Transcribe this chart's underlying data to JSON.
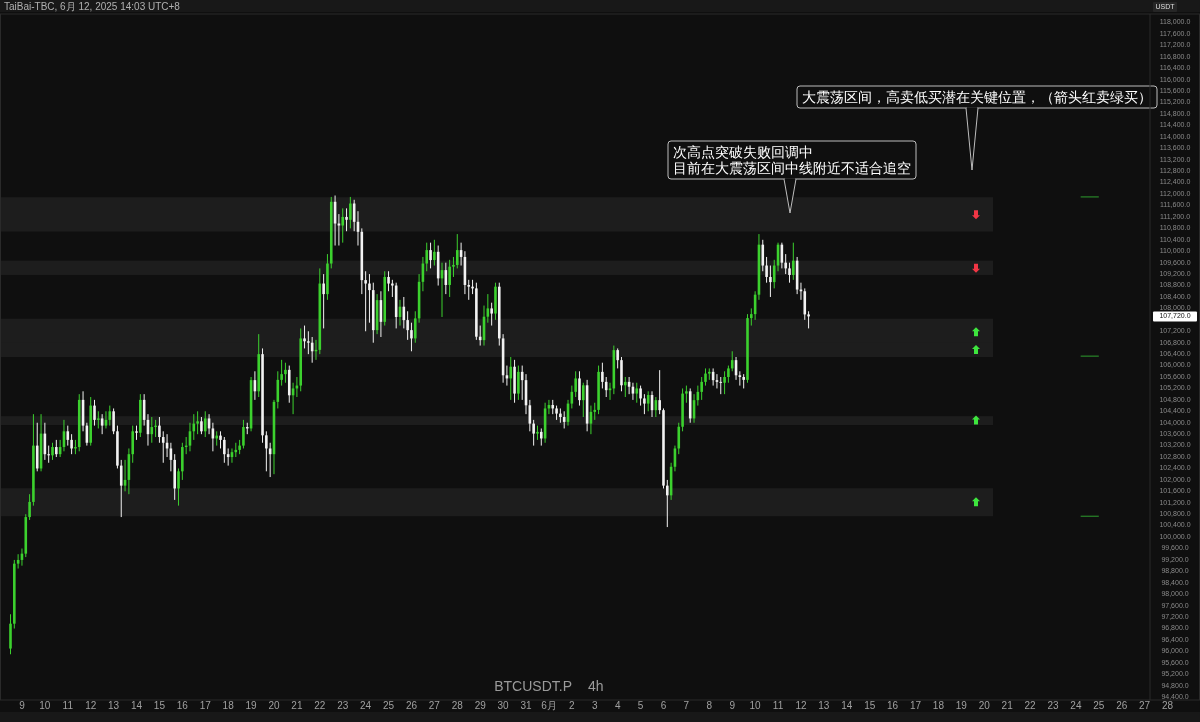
{
  "chart_data": {
    "type": "candlestick",
    "title": "BTCUSDT.P",
    "subtitle": "4h",
    "ylabel": "USDT",
    "annotations": [
      "TaiBai-TBC, 6月 12, 2025 14:03 UTC+8",
      "次高点突破失败回调中",
      "目前在大震荡区间中线附近不适合追空",
      "大震荡区间，高卖低买潜在关键位置，（箭头红卖绿买）",
      "107,720.0"
    ],
    "series": [
      {
        "type": "line",
        "color": "#2e9e2e",
        "x": [
          "2025-06-24T05:00",
          "2025-06-25T00:00"
        ],
        "values": [
          111900,
          111900
        ]
      },
      {
        "type": "line",
        "color": "#2e9e2e",
        "x": [
          "2025-06-24T05:00",
          "2025-06-25T00:00"
        ],
        "values": [
          106330,
          106330
        ]
      },
      {
        "type": "line",
        "color": "#2e9e2e",
        "x": [
          "2025-06-24T05:00",
          "2025-06-25T00:00"
        ],
        "values": [
          100730,
          100730
        ]
      }
    ],
    "xlim": [
      "2025-05-08T01:00",
      "2025-06-29T10:00"
    ],
    "ylim": [
      94300,
      118300
    ],
    "x": [
      "2025-05-08T12:00",
      "2025-05-08T16:00",
      "2025-05-08T20:00",
      "2025-05-09T00:00",
      "2025-05-09T04:00",
      "2025-05-09T08:00",
      "2025-05-09T12:00",
      "2025-05-09T16:00",
      "2025-05-09T20:00",
      "2025-05-10T00:00",
      "2025-05-10T04:00",
      "2025-05-10T08:00",
      "2025-05-10T12:00",
      "2025-05-10T16:00",
      "2025-05-10T20:00",
      "2025-05-11T00:00",
      "2025-05-11T04:00",
      "2025-05-11T08:00",
      "2025-05-11T12:00",
      "2025-05-11T16:00",
      "2025-05-11T20:00",
      "2025-05-12T00:00",
      "2025-05-12T04:00",
      "2025-05-12T08:00",
      "2025-05-12T12:00",
      "2025-05-12T16:00",
      "2025-05-12T20:00",
      "2025-05-13T00:00",
      "2025-05-13T04:00",
      "2025-05-13T08:00",
      "2025-05-13T12:00",
      "2025-05-13T16:00",
      "2025-05-13T20:00",
      "2025-05-14T00:00",
      "2025-05-14T04:00",
      "2025-05-14T08:00",
      "2025-05-14T12:00",
      "2025-05-14T16:00",
      "2025-05-14T20:00",
      "2025-05-15T00:00",
      "2025-05-15T04:00",
      "2025-05-15T08:00",
      "2025-05-15T12:00",
      "2025-05-15T16:00",
      "2025-05-15T20:00",
      "2025-05-16T00:00",
      "2025-05-16T04:00",
      "2025-05-16T08:00",
      "2025-05-16T12:00",
      "2025-05-16T16:00",
      "2025-05-16T20:00",
      "2025-05-17T00:00",
      "2025-05-17T04:00",
      "2025-05-17T08:00",
      "2025-05-17T12:00",
      "2025-05-17T16:00",
      "2025-05-17T20:00",
      "2025-05-18T00:00",
      "2025-05-18T04:00",
      "2025-05-18T08:00",
      "2025-05-18T12:00",
      "2025-05-18T16:00",
      "2025-05-18T20:00",
      "2025-05-19T00:00",
      "2025-05-19T04:00",
      "2025-05-19T08:00",
      "2025-05-19T12:00",
      "2025-05-19T16:00",
      "2025-05-19T20:00",
      "2025-05-20T00:00",
      "2025-05-20T04:00",
      "2025-05-20T08:00",
      "2025-05-20T12:00",
      "2025-05-20T16:00",
      "2025-05-20T20:00",
      "2025-05-21T00:00",
      "2025-05-21T04:00",
      "2025-05-21T08:00",
      "2025-05-21T12:00",
      "2025-05-21T16:00",
      "2025-05-21T20:00",
      "2025-05-22T00:00",
      "2025-05-22T04:00",
      "2025-05-22T08:00",
      "2025-05-22T12:00",
      "2025-05-22T16:00",
      "2025-05-22T20:00",
      "2025-05-23T00:00",
      "2025-05-23T04:00",
      "2025-05-23T08:00",
      "2025-05-23T12:00",
      "2025-05-23T16:00",
      "2025-05-23T20:00",
      "2025-05-24T00:00",
      "2025-05-24T04:00",
      "2025-05-24T08:00",
      "2025-05-24T12:00",
      "2025-05-24T16:00",
      "2025-05-24T20:00",
      "2025-05-25T00:00",
      "2025-05-25T04:00",
      "2025-05-25T08:00",
      "2025-05-25T12:00",
      "2025-05-25T16:00",
      "2025-05-25T20:00",
      "2025-05-26T00:00",
      "2025-05-26T04:00",
      "2025-05-26T08:00",
      "2025-05-26T12:00",
      "2025-05-26T16:00",
      "2025-05-26T20:00",
      "2025-05-27T00:00",
      "2025-05-27T04:00",
      "2025-05-27T08:00",
      "2025-05-27T12:00",
      "2025-05-27T16:00",
      "2025-05-27T20:00",
      "2025-05-28T00:00",
      "2025-05-28T04:00",
      "2025-05-28T08:00",
      "2025-05-28T12:00",
      "2025-05-28T16:00",
      "2025-05-28T20:00",
      "2025-05-29T00:00",
      "2025-05-29T04:00",
      "2025-05-29T08:00",
      "2025-05-29T12:00",
      "2025-05-29T16:00",
      "2025-05-29T20:00",
      "2025-05-30T00:00",
      "2025-05-30T04:00",
      "2025-05-30T08:00",
      "2025-05-30T12:00",
      "2025-05-30T16:00",
      "2025-05-30T20:00",
      "2025-05-31T00:00",
      "2025-05-31T04:00",
      "2025-05-31T08:00",
      "2025-05-31T12:00",
      "2025-05-31T16:00",
      "2025-05-31T20:00",
      "2025-06-01T00:00",
      "2025-06-01T04:00",
      "2025-06-01T08:00",
      "2025-06-01T12:00",
      "2025-06-01T16:00",
      "2025-06-01T20:00",
      "2025-06-02T00:00",
      "2025-06-02T04:00",
      "2025-06-02T08:00",
      "2025-06-02T12:00",
      "2025-06-02T16:00",
      "2025-06-02T20:00",
      "2025-06-03T00:00",
      "2025-06-03T04:00",
      "2025-06-03T08:00",
      "2025-06-03T12:00",
      "2025-06-03T16:00",
      "2025-06-03T20:00",
      "2025-06-04T00:00",
      "2025-06-04T04:00",
      "2025-06-04T08:00",
      "2025-06-04T12:00",
      "2025-06-04T16:00",
      "2025-06-04T20:00",
      "2025-06-05T00:00",
      "2025-06-05T04:00",
      "2025-06-05T08:00",
      "2025-06-05T12:00",
      "2025-06-05T16:00",
      "2025-06-05T20:00",
      "2025-06-06T00:00",
      "2025-06-06T04:00",
      "2025-06-06T08:00",
      "2025-06-06T12:00",
      "2025-06-06T16:00",
      "2025-06-06T20:00",
      "2025-06-07T00:00",
      "2025-06-07T04:00",
      "2025-06-07T08:00",
      "2025-06-07T12:00",
      "2025-06-07T16:00",
      "2025-06-07T20:00",
      "2025-06-08T00:00",
      "2025-06-08T04:00",
      "2025-06-08T08:00",
      "2025-06-08T12:00",
      "2025-06-08T16:00",
      "2025-06-08T20:00",
      "2025-06-09T00:00",
      "2025-06-09T04:00",
      "2025-06-09T08:00",
      "2025-06-09T12:00",
      "2025-06-09T16:00",
      "2025-06-09T20:00",
      "2025-06-10T00:00",
      "2025-06-10T04:00",
      "2025-06-10T08:00",
      "2025-06-10T12:00",
      "2025-06-10T16:00",
      "2025-06-10T20:00",
      "2025-06-11T00:00",
      "2025-06-11T04:00",
      "2025-06-11T08:00",
      "2025-06-11T12:00",
      "2025-06-11T16:00",
      "2025-06-11T20:00",
      "2025-06-12T00:00",
      "2025-06-12T04:00",
      "2025-06-12T08:00"
    ],
    "ohlc": [
      [
        96100,
        97300,
        95900,
        96970
      ],
      [
        96970,
        99200,
        96800,
        99070
      ],
      [
        99070,
        99400,
        98900,
        99200
      ],
      [
        99200,
        99600,
        99000,
        99420
      ],
      [
        99420,
        100800,
        99300,
        100700
      ],
      [
        100700,
        101500,
        100600,
        101230
      ],
      [
        101230,
        104300,
        101100,
        103200
      ],
      [
        103200,
        104000,
        102300,
        102400
      ],
      [
        102400,
        104300,
        102300,
        103620
      ],
      [
        103620,
        104000,
        102700,
        102900
      ],
      [
        102900,
        103200,
        102600,
        102860
      ],
      [
        102860,
        103300,
        102700,
        103150
      ],
      [
        103150,
        103400,
        102800,
        102900
      ],
      [
        102900,
        103400,
        102800,
        103150
      ],
      [
        103150,
        104100,
        103000,
        103700
      ],
      [
        103700,
        103900,
        103200,
        103400
      ],
      [
        103400,
        103600,
        102900,
        103100
      ],
      [
        103100,
        103400,
        102900,
        103150
      ],
      [
        103150,
        105000,
        103000,
        104800
      ],
      [
        104800,
        105100,
        103700,
        103900
      ],
      [
        103900,
        104000,
        103200,
        103300
      ],
      [
        103300,
        104900,
        103200,
        104600
      ],
      [
        104600,
        104800,
        103900,
        104100
      ],
      [
        104100,
        104400,
        103800,
        104150
      ],
      [
        104150,
        104300,
        103600,
        103900
      ],
      [
        103900,
        104400,
        103800,
        104100
      ],
      [
        104100,
        104600,
        103900,
        104400
      ],
      [
        104400,
        104500,
        103600,
        103700
      ],
      [
        103700,
        103900,
        102400,
        102500
      ],
      [
        102500,
        102700,
        100700,
        101800
      ],
      [
        101800,
        102700,
        101600,
        102000
      ],
      [
        102000,
        103100,
        101500,
        102900
      ],
      [
        102900,
        103900,
        102600,
        103700
      ],
      [
        103700,
        103900,
        103400,
        103650
      ],
      [
        103650,
        105000,
        103500,
        104800
      ],
      [
        104800,
        105000,
        103900,
        104100
      ],
      [
        104100,
        104300,
        103200,
        103600
      ],
      [
        103600,
        104200,
        103300,
        103850
      ],
      [
        103850,
        104100,
        103500,
        103900
      ],
      [
        103900,
        104200,
        103300,
        103500
      ],
      [
        103500,
        103700,
        102600,
        103300
      ],
      [
        103300,
        103600,
        102800,
        103100
      ],
      [
        103100,
        103300,
        102300,
        102700
      ],
      [
        102700,
        102900,
        101300,
        101700
      ],
      [
        101700,
        102400,
        101100,
        102300
      ],
      [
        102300,
        103300,
        102000,
        103150
      ],
      [
        103150,
        103500,
        102900,
        103200
      ],
      [
        103200,
        104000,
        103000,
        103700
      ],
      [
        103700,
        104300,
        103400,
        103970
      ],
      [
        103970,
        104400,
        103600,
        104050
      ],
      [
        104050,
        104200,
        103600,
        103700
      ],
      [
        103700,
        104400,
        103500,
        104150
      ],
      [
        104150,
        104300,
        103600,
        103800
      ],
      [
        103800,
        104000,
        103000,
        103450
      ],
      [
        103450,
        103700,
        103200,
        103550
      ],
      [
        103550,
        103700,
        103100,
        103400
      ],
      [
        103400,
        103500,
        102600,
        102900
      ],
      [
        102900,
        103100,
        102500,
        102800
      ],
      [
        102800,
        103100,
        102600,
        102970
      ],
      [
        102970,
        103300,
        102800,
        103050
      ],
      [
        103050,
        103400,
        102900,
        103200
      ],
      [
        103200,
        104100,
        103100,
        103850
      ],
      [
        103850,
        104000,
        103600,
        103800
      ],
      [
        103800,
        105600,
        103700,
        105490
      ],
      [
        105490,
        105800,
        104800,
        105100
      ],
      [
        105100,
        107100,
        104900,
        106400
      ],
      [
        106400,
        106600,
        103300,
        103560
      ],
      [
        103560,
        103700,
        102300,
        103100
      ],
      [
        103100,
        103300,
        102100,
        102900
      ],
      [
        102900,
        104800,
        102200,
        104730
      ],
      [
        104730,
        105800,
        104500,
        105500
      ],
      [
        105500,
        106200,
        105300,
        105700
      ],
      [
        105700,
        106100,
        105400,
        105850
      ],
      [
        105850,
        106000,
        104700,
        104960
      ],
      [
        104960,
        105400,
        104300,
        105200
      ],
      [
        105200,
        105600,
        104900,
        105300
      ],
      [
        105300,
        107300,
        105100,
        106950
      ],
      [
        106950,
        107400,
        106600,
        106850
      ],
      [
        106850,
        107200,
        106400,
        106800
      ],
      [
        106800,
        107000,
        106100,
        106500
      ],
      [
        106500,
        106900,
        106200,
        106550
      ],
      [
        106550,
        109400,
        106400,
        108870
      ],
      [
        108870,
        109200,
        107300,
        108500
      ],
      [
        108500,
        109900,
        108300,
        109570
      ],
      [
        109570,
        111900,
        109400,
        111730
      ],
      [
        111730,
        111950,
        110200,
        110970
      ],
      [
        110970,
        111300,
        110200,
        110900
      ],
      [
        110900,
        111500,
        110300,
        111200
      ],
      [
        111200,
        111500,
        110700,
        111100
      ],
      [
        111100,
        111900,
        110800,
        111670
      ],
      [
        111670,
        111800,
        110700,
        111030
      ],
      [
        111030,
        111400,
        110200,
        110680
      ],
      [
        110680,
        110800,
        108500,
        108990
      ],
      [
        108990,
        109300,
        107200,
        108870
      ],
      [
        108870,
        109200,
        107500,
        108640
      ],
      [
        108640,
        108900,
        106800,
        107240
      ],
      [
        107240,
        108500,
        107100,
        108290
      ],
      [
        108290,
        108600,
        107000,
        107530
      ],
      [
        107530,
        109300,
        107400,
        109100
      ],
      [
        109100,
        109300,
        108600,
        108870
      ],
      [
        108870,
        109000,
        108400,
        108800
      ],
      [
        108800,
        108900,
        107300,
        107700
      ],
      [
        107700,
        108300,
        107400,
        108060
      ],
      [
        108060,
        108400,
        107300,
        107590
      ],
      [
        107590,
        107900,
        106900,
        107240
      ],
      [
        107240,
        107500,
        106500,
        106950
      ],
      [
        106950,
        107900,
        106800,
        107650
      ],
      [
        107650,
        109200,
        107500,
        108930
      ],
      [
        108930,
        109800,
        108600,
        109570
      ],
      [
        109570,
        110300,
        109300,
        110040
      ],
      [
        110040,
        110300,
        109400,
        109690
      ],
      [
        109690,
        110400,
        109500,
        109980
      ],
      [
        109980,
        110200,
        108800,
        109050
      ],
      [
        109050,
        109600,
        107700,
        109340
      ],
      [
        109340,
        109600,
        108500,
        108820
      ],
      [
        108820,
        109700,
        108400,
        109460
      ],
      [
        109460,
        109800,
        109100,
        109520
      ],
      [
        109520,
        110600,
        109400,
        110040
      ],
      [
        110040,
        110300,
        109500,
        109800
      ],
      [
        109800,
        110000,
        108500,
        108820
      ],
      [
        108820,
        109000,
        108300,
        108760
      ],
      [
        108760,
        109000,
        108500,
        108700
      ],
      [
        108700,
        108900,
        106900,
        107010
      ],
      [
        107010,
        107400,
        106700,
        106890
      ],
      [
        106890,
        108100,
        106700,
        107710
      ],
      [
        107710,
        108500,
        107500,
        108000
      ],
      [
        108000,
        108200,
        107400,
        107820
      ],
      [
        107820,
        108900,
        107600,
        108760
      ],
      [
        108760,
        108900,
        106700,
        106950
      ],
      [
        106950,
        107100,
        105400,
        105660
      ],
      [
        105660,
        106000,
        105300,
        105550
      ],
      [
        105550,
        106300,
        104800,
        105960
      ],
      [
        105960,
        106200,
        104700,
        105020
      ],
      [
        105020,
        106000,
        104800,
        105780
      ],
      [
        105780,
        106000,
        104800,
        105490
      ],
      [
        105490,
        105700,
        104300,
        104610
      ],
      [
        104610,
        104800,
        103700,
        103970
      ],
      [
        103970,
        104100,
        103200,
        103620
      ],
      [
        103620,
        103900,
        103400,
        103680
      ],
      [
        103680,
        103800,
        103200,
        103450
      ],
      [
        103450,
        104700,
        103300,
        104500
      ],
      [
        104500,
        104800,
        104300,
        104620
      ],
      [
        104620,
        104800,
        104300,
        104500
      ],
      [
        104500,
        104600,
        104100,
        104320
      ],
      [
        104320,
        104500,
        104000,
        104200
      ],
      [
        104200,
        104400,
        103800,
        104030
      ],
      [
        104030,
        104800,
        103900,
        104670
      ],
      [
        104670,
        105300,
        104500,
        105080
      ],
      [
        105080,
        105800,
        104900,
        105550
      ],
      [
        105550,
        105800,
        104600,
        104790
      ],
      [
        104790,
        105400,
        104200,
        105310
      ],
      [
        105310,
        105500,
        103700,
        103970
      ],
      [
        103970,
        104600,
        103600,
        104380
      ],
      [
        104380,
        104700,
        104100,
        104450
      ],
      [
        104450,
        106000,
        104300,
        105780
      ],
      [
        105780,
        106100,
        105200,
        105430
      ],
      [
        105430,
        105600,
        104900,
        105140
      ],
      [
        105140,
        105400,
        104800,
        105200
      ],
      [
        105200,
        106700,
        105000,
        106540
      ],
      [
        106540,
        106600,
        105900,
        106190
      ],
      [
        106190,
        106300,
        105100,
        105310
      ],
      [
        105310,
        105600,
        104900,
        105430
      ],
      [
        105430,
        105600,
        105000,
        105260
      ],
      [
        105260,
        105400,
        104800,
        105020
      ],
      [
        105020,
        105400,
        104700,
        105200
      ],
      [
        105200,
        105300,
        104600,
        104850
      ],
      [
        104850,
        105000,
        104300,
        104670
      ],
      [
        104670,
        105100,
        104400,
        104970
      ],
      [
        104970,
        105100,
        104200,
        104440
      ],
      [
        104440,
        104900,
        104200,
        104790
      ],
      [
        104790,
        105840,
        104300,
        104440
      ],
      [
        104440,
        104500,
        101700,
        101800
      ],
      [
        101800,
        102000,
        100350,
        101460
      ],
      [
        101460,
        102600,
        101300,
        102460
      ],
      [
        102460,
        103200,
        102300,
        103100
      ],
      [
        103100,
        104000,
        102900,
        103860
      ],
      [
        103860,
        105200,
        103700,
        105020
      ],
      [
        105020,
        105300,
        104700,
        105100
      ],
      [
        105100,
        105200,
        104000,
        104150
      ],
      [
        104150,
        105000,
        104000,
        104790
      ],
      [
        104790,
        105300,
        104600,
        105080
      ],
      [
        105080,
        105600,
        104800,
        105430
      ],
      [
        105430,
        105900,
        105300,
        105720
      ],
      [
        105720,
        105900,
        105500,
        105780
      ],
      [
        105780,
        105900,
        105300,
        105490
      ],
      [
        105490,
        105700,
        105200,
        105430
      ],
      [
        105430,
        105600,
        105000,
        105400
      ],
      [
        105400,
        105800,
        105000,
        105600
      ],
      [
        105600,
        106000,
        105400,
        105900
      ],
      [
        105900,
        106500,
        105800,
        106190
      ],
      [
        106190,
        106300,
        105500,
        105660
      ],
      [
        105660,
        105800,
        105300,
        105600
      ],
      [
        105600,
        105700,
        105200,
        105500
      ],
      [
        105500,
        107800,
        105400,
        107660
      ],
      [
        107660,
        108000,
        107400,
        107800
      ],
      [
        107800,
        108600,
        107600,
        108480
      ],
      [
        108480,
        110600,
        108300,
        110230
      ],
      [
        110230,
        110400,
        109300,
        109500
      ],
      [
        109500,
        109800,
        108900,
        109100
      ],
      [
        109100,
        109500,
        108400,
        108920
      ],
      [
        108920,
        109700,
        108700,
        109500
      ],
      [
        109500,
        110300,
        109300,
        110230
      ],
      [
        110230,
        110300,
        109400,
        109600
      ],
      [
        109600,
        109900,
        109200,
        109400
      ],
      [
        109400,
        109600,
        108900,
        109170
      ],
      [
        109170,
        110300,
        109000,
        109670
      ],
      [
        109670,
        109800,
        108500,
        108660
      ],
      [
        108660,
        108900,
        108300,
        108600
      ],
      [
        108600,
        108700,
        107600,
        107790
      ],
      [
        107790,
        107900,
        107300,
        107720
      ]
    ],
    "colors": [
      "#3cd12e",
      "#3cd12e",
      "#3cd12e",
      "#3cd12e",
      "#3cd12e",
      "#3cd12e",
      "#3cd12e",
      "#f2f2f2",
      "#3cd12e",
      "#f2f2f2",
      "#f2f2f2",
      "#3cd12e",
      "#f2f2f2",
      "#3cd12e",
      "#3cd12e",
      "#f2f2f2",
      "#f2f2f2",
      "#3cd12e",
      "#3cd12e",
      "#f2f2f2",
      "#f2f2f2",
      "#3cd12e",
      "#f2f2f2",
      "#3cd12e",
      "#f2f2f2",
      "#3cd12e",
      "#3cd12e",
      "#f2f2f2",
      "#f2f2f2",
      "#f2f2f2",
      "#3cd12e",
      "#3cd12e",
      "#3cd12e",
      "#f2f2f2",
      "#3cd12e",
      "#f2f2f2",
      "#f2f2f2",
      "#3cd12e",
      "#3cd12e",
      "#f2f2f2",
      "#f2f2f2",
      "#f2f2f2",
      "#f2f2f2",
      "#f2f2f2",
      "#3cd12e",
      "#3cd12e",
      "#3cd12e",
      "#3cd12e",
      "#3cd12e",
      "#3cd12e",
      "#f2f2f2",
      "#3cd12e",
      "#f2f2f2",
      "#f2f2f2",
      "#3cd12e",
      "#f2f2f2",
      "#f2f2f2",
      "#f2f2f2",
      "#3cd12e",
      "#3cd12e",
      "#3cd12e",
      "#3cd12e",
      "#f2f2f2",
      "#3cd12e",
      "#f2f2f2",
      "#3cd12e",
      "#f2f2f2",
      "#f2f2f2",
      "#f2f2f2",
      "#3cd12e",
      "#3cd12e",
      "#3cd12e",
      "#3cd12e",
      "#f2f2f2",
      "#3cd12e",
      "#3cd12e",
      "#3cd12e",
      "#f2f2f2",
      "#f2f2f2",
      "#f2f2f2",
      "#3cd12e",
      "#3cd12e",
      "#f2f2f2",
      "#3cd12e",
      "#3cd12e",
      "#f2f2f2",
      "#f2f2f2",
      "#3cd12e",
      "#f2f2f2",
      "#3cd12e",
      "#f2f2f2",
      "#f2f2f2",
      "#f2f2f2",
      "#f2f2f2",
      "#f2f2f2",
      "#f2f2f2",
      "#3cd12e",
      "#f2f2f2",
      "#3cd12e",
      "#f2f2f2",
      "#f2f2f2",
      "#f2f2f2",
      "#3cd12e",
      "#f2f2f2",
      "#f2f2f2",
      "#f2f2f2",
      "#3cd12e",
      "#3cd12e",
      "#3cd12e",
      "#3cd12e",
      "#f2f2f2",
      "#3cd12e",
      "#f2f2f2",
      "#3cd12e",
      "#f2f2f2",
      "#3cd12e",
      "#3cd12e",
      "#3cd12e",
      "#f2f2f2",
      "#f2f2f2",
      "#f2f2f2",
      "#f2f2f2",
      "#f2f2f2",
      "#f2f2f2",
      "#3cd12e",
      "#3cd12e",
      "#f2f2f2",
      "#3cd12e",
      "#f2f2f2",
      "#f2f2f2",
      "#f2f2f2",
      "#3cd12e",
      "#f2f2f2",
      "#3cd12e",
      "#f2f2f2",
      "#f2f2f2",
      "#f2f2f2",
      "#f2f2f2",
      "#3cd12e",
      "#f2f2f2",
      "#3cd12e",
      "#3cd12e",
      "#f2f2f2",
      "#f2f2f2",
      "#f2f2f2",
      "#f2f2f2",
      "#3cd12e",
      "#3cd12e",
      "#3cd12e",
      "#f2f2f2",
      "#3cd12e",
      "#f2f2f2",
      "#3cd12e",
      "#3cd12e",
      "#3cd12e",
      "#f2f2f2",
      "#f2f2f2",
      "#3cd12e",
      "#3cd12e",
      "#f2f2f2",
      "#f2f2f2",
      "#3cd12e",
      "#f2f2f2",
      "#f2f2f2",
      "#3cd12e",
      "#f2f2f2",
      "#f2f2f2",
      "#3cd12e",
      "#f2f2f2",
      "#3cd12e",
      "#f2f2f2",
      "#f2f2f2",
      "#f2f2f2",
      "#3cd12e",
      "#3cd12e",
      "#3cd12e",
      "#3cd12e",
      "#3cd12e",
      "#f2f2f2",
      "#3cd12e",
      "#3cd12e",
      "#3cd12e",
      "#3cd12e",
      "#3cd12e",
      "#f2f2f2",
      "#f2f2f2",
      "#f2f2f2",
      "#3cd12e",
      "#3cd12e",
      "#3cd12e",
      "#f2f2f2",
      "#f2f2f2",
      "#f2f2f2",
      "#3cd12e",
      "#3cd12e",
      "#3cd12e",
      "#3cd12e",
      "#f2f2f2",
      "#f2f2f2",
      "#f2f2f2",
      "#3cd12e",
      "#3cd12e",
      "#f2f2f2",
      "#f2f2f2",
      "#f2f2f2",
      "#3cd12e",
      "#f2f2f2",
      "#f2f2f2",
      "#f2f2f2",
      "#f2f2f2"
    ],
    "bands": [
      {
        "axis": "y",
        "from": 110690,
        "to": 111890,
        "color": "#1d1d1d"
      },
      {
        "axis": "y",
        "from": 109170,
        "to": 109670,
        "color": "#1d1d1d"
      },
      {
        "axis": "y",
        "from": 106690,
        "to": 107640,
        "color": "#1d1d1d"
      },
      {
        "axis": "y",
        "from": 106300,
        "to": 106790,
        "color": "#1d1d1d"
      },
      {
        "axis": "y",
        "from": 103920,
        "to": 104230,
        "color": "#1d1d1d"
      },
      {
        "axis": "y",
        "from": 100730,
        "to": 101710,
        "color": "#1d1d1d"
      }
    ],
    "xticks": [
      {
        "value": "2025-05-09",
        "label": "9"
      },
      {
        "value": "2025-05-10",
        "label": "10"
      },
      {
        "value": "2025-05-11",
        "label": "11"
      },
      {
        "value": "2025-05-12",
        "label": "12"
      },
      {
        "value": "2025-05-13",
        "label": "13"
      },
      {
        "value": "2025-05-14",
        "label": "14"
      },
      {
        "value": "2025-05-15",
        "label": "15"
      },
      {
        "value": "2025-05-16",
        "label": "16"
      },
      {
        "value": "2025-05-17",
        "label": "17"
      },
      {
        "value": "2025-05-18",
        "label": "18"
      },
      {
        "value": "2025-05-19",
        "label": "19"
      },
      {
        "value": "2025-05-20",
        "label": "20"
      },
      {
        "value": "2025-05-21",
        "label": "21"
      },
      {
        "value": "2025-05-22",
        "label": "22"
      },
      {
        "value": "2025-05-23",
        "label": "23"
      },
      {
        "value": "2025-05-24",
        "label": "24"
      },
      {
        "value": "2025-05-25",
        "label": "25"
      },
      {
        "value": "2025-05-26",
        "label": "26"
      },
      {
        "value": "2025-05-27",
        "label": "27"
      },
      {
        "value": "2025-05-28",
        "label": "28"
      },
      {
        "value": "2025-05-29",
        "label": "29"
      },
      {
        "value": "2025-05-30",
        "label": "30"
      },
      {
        "value": "2025-05-31",
        "label": "31"
      },
      {
        "value": "2025-06-01",
        "label": "6月"
      },
      {
        "value": "2025-06-02",
        "label": "2"
      },
      {
        "value": "2025-06-03",
        "label": "3"
      },
      {
        "value": "2025-06-04",
        "label": "4"
      },
      {
        "value": "2025-06-05",
        "label": "5"
      },
      {
        "value": "2025-06-06",
        "label": "6"
      },
      {
        "value": "2025-06-07",
        "label": "7"
      },
      {
        "value": "2025-06-08",
        "label": "8"
      },
      {
        "value": "2025-06-09",
        "label": "9"
      },
      {
        "value": "2025-06-10",
        "label": "10"
      },
      {
        "value": "2025-06-11",
        "label": "11"
      },
      {
        "value": "2025-06-12",
        "label": "12"
      },
      {
        "value": "2025-06-13",
        "label": "13"
      },
      {
        "value": "2025-06-14",
        "label": "14"
      },
      {
        "value": "2025-06-15",
        "label": "15"
      },
      {
        "value": "2025-06-16",
        "label": "16"
      },
      {
        "value": "2025-06-17",
        "label": "17"
      },
      {
        "value": "2025-06-18",
        "label": "18"
      },
      {
        "value": "2025-06-19",
        "label": "19"
      },
      {
        "value": "2025-06-20",
        "label": "20"
      },
      {
        "value": "2025-06-21",
        "label": "21"
      },
      {
        "value": "2025-06-22",
        "label": "22"
      },
      {
        "value": "2025-06-23",
        "label": "23"
      },
      {
        "value": "2025-06-24",
        "label": "24"
      },
      {
        "value": "2025-06-25",
        "label": "25"
      },
      {
        "value": "2025-06-26",
        "label": "26"
      },
      {
        "value": "2025-06-27",
        "label": "27"
      },
      {
        "value": "2025-06-28",
        "label": "28"
      }
    ],
    "yticks": [
      {
        "value": 118000,
        "label": "118,000.0"
      },
      {
        "value": 117600,
        "label": "117,600.0"
      },
      {
        "value": 117200,
        "label": "117,200.0"
      },
      {
        "value": 116800,
        "label": "116,800.0"
      },
      {
        "value": 116400,
        "label": "116,400.0"
      },
      {
        "value": 116000,
        "label": "116,000.0"
      },
      {
        "value": 115600,
        "label": "115,600.0"
      },
      {
        "value": 115200,
        "label": "115,200.0"
      },
      {
        "value": 114800,
        "label": "114,800.0"
      },
      {
        "value": 114400,
        "label": "114,400.0"
      },
      {
        "value": 114000,
        "label": "114,000.0"
      },
      {
        "value": 113600,
        "label": "113,600.0"
      },
      {
        "value": 113200,
        "label": "113,200.0"
      },
      {
        "value": 112800,
        "label": "112,800.0"
      },
      {
        "value": 112400,
        "label": "112,400.0"
      },
      {
        "value": 112000,
        "label": "112,000.0"
      },
      {
        "value": 111600,
        "label": "111,600.0"
      },
      {
        "value": 111200,
        "label": "111,200.0"
      },
      {
        "value": 110800,
        "label": "110,800.0"
      },
      {
        "value": 110400,
        "label": "110,400.0"
      },
      {
        "value": 110000,
        "label": "110,000.0"
      },
      {
        "value": 109600,
        "label": "109,600.0"
      },
      {
        "value": 109200,
        "label": "109,200.0"
      },
      {
        "value": 108800,
        "label": "108,800.0"
      },
      {
        "value": 108400,
        "label": "108,400.0"
      },
      {
        "value": 108000,
        "label": "108,000.0"
      },
      {
        "value": 107200,
        "label": "107,200.0"
      },
      {
        "value": 106800,
        "label": "106,800.0"
      },
      {
        "value": 106400,
        "label": "106,400.0"
      },
      {
        "value": 106000,
        "label": "106,000.0"
      },
      {
        "value": 105600,
        "label": "105,600.0"
      },
      {
        "value": 105200,
        "label": "105,200.0"
      },
      {
        "value": 104800,
        "label": "104,800.0"
      },
      {
        "value": 104400,
        "label": "104,400.0"
      },
      {
        "value": 104000,
        "label": "104,000.0"
      },
      {
        "value": 103600,
        "label": "103,600.0"
      },
      {
        "value": 103200,
        "label": "103,200.0"
      },
      {
        "value": 102800,
        "label": "102,800.0"
      },
      {
        "value": 102400,
        "label": "102,400.0"
      },
      {
        "value": 102000,
        "label": "102,000.0"
      },
      {
        "value": 101600,
        "label": "101,600.0"
      },
      {
        "value": 101200,
        "label": "101,200.0"
      },
      {
        "value": 100800,
        "label": "100,800.0"
      },
      {
        "value": 100400,
        "label": "100,400.0"
      },
      {
        "value": 100000,
        "label": "100,000.0"
      },
      {
        "value": 99600,
        "label": "99,600.0"
      },
      {
        "value": 99200,
        "label": "99,200.0"
      },
      {
        "value": 98800,
        "label": "98,800.0"
      },
      {
        "value": 98400,
        "label": "98,400.0"
      },
      {
        "value": 98000,
        "label": "98,000.0"
      },
      {
        "value": 97600,
        "label": "97,600.0"
      },
      {
        "value": 97200,
        "label": "97,200.0"
      },
      {
        "value": 96800,
        "label": "96,800.0"
      },
      {
        "value": 96400,
        "label": "96,400.0"
      },
      {
        "value": 96000,
        "label": "96,000.0"
      },
      {
        "value": 95600,
        "label": "95,600.0"
      },
      {
        "value": 95200,
        "label": "95,200.0"
      },
      {
        "value": 94800,
        "label": "94,800.0"
      },
      {
        "value": 94400,
        "label": "94,400.0"
      }
    ]
  }
}
